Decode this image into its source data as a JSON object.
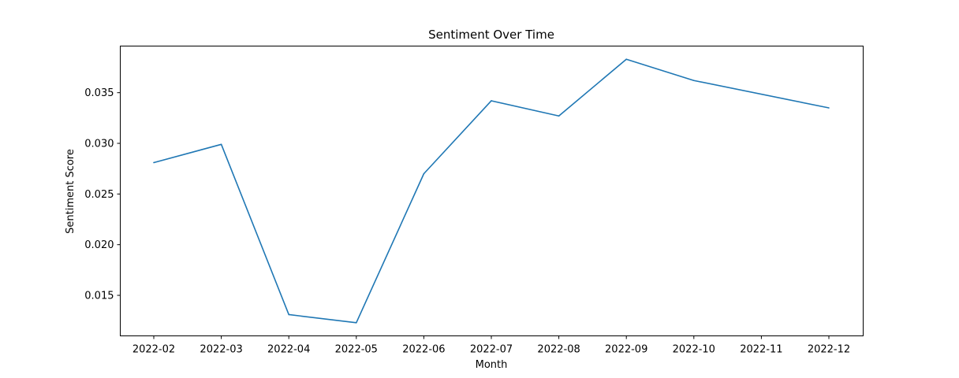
{
  "chart_data": {
    "type": "line",
    "title": "Sentiment Over Time",
    "xlabel": "Month",
    "ylabel": "Sentiment Score",
    "x": [
      "2022-02",
      "2022-03",
      "2022-04",
      "2022-05",
      "2022-06",
      "2022-07",
      "2022-08",
      "2022-09",
      "2022-10",
      "2022-11",
      "2022-12"
    ],
    "series": [
      {
        "color": "#1f77b4",
        "points": [
          {
            "x": "2022-02",
            "y": 0.0281
          },
          {
            "x": "2022-03",
            "y": 0.0299
          },
          {
            "x": "2022-04",
            "y": 0.0131
          },
          {
            "x": "2022-05",
            "y": 0.0123
          },
          {
            "x": "2022-06",
            "y": 0.027
          },
          {
            "x": "2022-07",
            "y": 0.0342
          },
          {
            "x": "2022-08",
            "y": 0.0327
          },
          {
            "x": "2022-09",
            "y": 0.0383
          },
          {
            "x": "2022-10",
            "y": 0.0362
          },
          {
            "x": "2022-12",
            "y": 0.0335
          }
        ]
      }
    ],
    "yticks": [
      "0.015",
      "0.020",
      "0.025",
      "0.030",
      "0.035"
    ],
    "ylim": [
      0.011,
      0.0396
    ],
    "grid": false,
    "legend": "none"
  }
}
